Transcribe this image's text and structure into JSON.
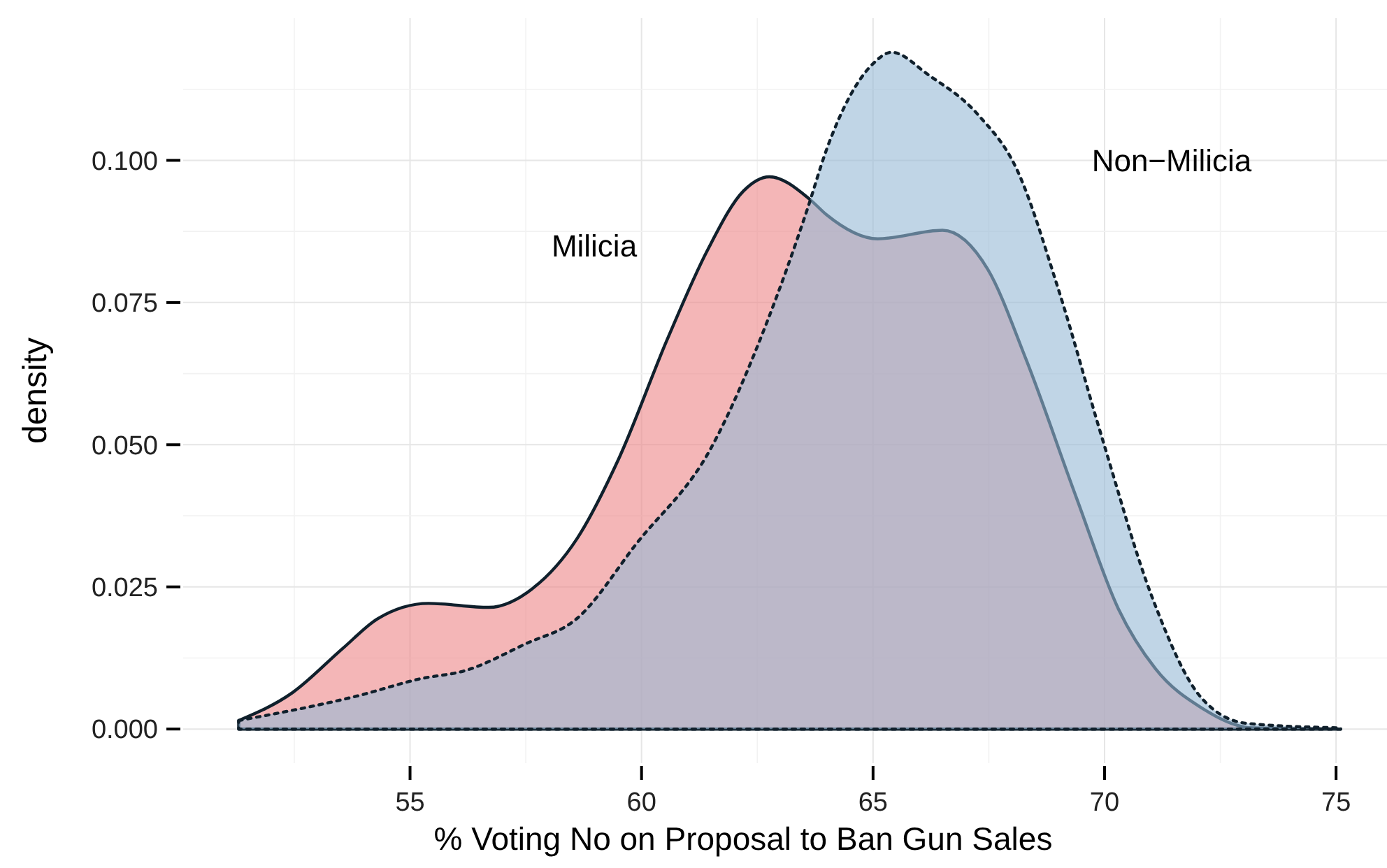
{
  "chart_data": {
    "type": "area",
    "xlabel": "% Voting No on Proposal to Ban Gun Sales",
    "ylabel": "density",
    "xlim": [
      50.1,
      76.1
    ],
    "ylim": [
      -0.006,
      0.125
    ],
    "xticks": [
      55,
      60,
      65,
      70,
      75
    ],
    "yticks": [
      {
        "value": 0,
        "label": "0.000"
      },
      {
        "value": 0.025,
        "label": "0.025"
      },
      {
        "value": 0.05,
        "label": "0.050"
      },
      {
        "value": 0.075,
        "label": "0.075"
      },
      {
        "value": 0.1,
        "label": "0.100"
      }
    ],
    "grid": true,
    "series": [
      {
        "color": "#ed8587",
        "line_style": "solid",
        "x": [
          51.3,
          52.46,
          53.55,
          54.3,
          55.4,
          56.7,
          57.66,
          58.6,
          59.5,
          60.56,
          61.43,
          62.2,
          62.76,
          63.64,
          64.0,
          65.1,
          66.5,
          67.48,
          68.3,
          69.4,
          70.3,
          71.1,
          72.1,
          73.2,
          75.1
        ],
        "values": [
          0.0015,
          0.0064,
          0.0142,
          0.0194,
          0.0221,
          0.0214,
          0.0248,
          0.0334,
          0.0474,
          0.0686,
          0.0843,
          0.0946,
          0.0971,
          0.0931,
          0.0904,
          0.0862,
          0.0877,
          0.0808,
          0.0651,
          0.0405,
          0.0211,
          0.0106,
          0.0037,
          0.0002,
          0
        ]
      },
      {
        "color": "#96b9d5",
        "line_style": "dotted",
        "x": [
          51.3,
          53.9,
          55.2,
          56.2,
          57.5,
          58.6,
          59.9,
          61.5,
          62.73,
          63.58,
          64.0,
          65.0,
          65.4,
          66.2,
          67.27,
          68.1,
          69.0,
          69.95,
          71.04,
          72.1,
          73.07,
          75.1
        ],
        "values": [
          0.0015,
          0.0059,
          0.0088,
          0.0103,
          0.015,
          0.0194,
          0.0327,
          0.0494,
          0.072,
          0.0914,
          0.102,
          0.117,
          0.119,
          0.115,
          0.108,
          0.0985,
          0.0774,
          0.0511,
          0.0229,
          0.0054,
          0.001,
          0.0002
        ]
      }
    ],
    "annotations": [
      "Milicia",
      "Non−Milicia"
    ]
  }
}
